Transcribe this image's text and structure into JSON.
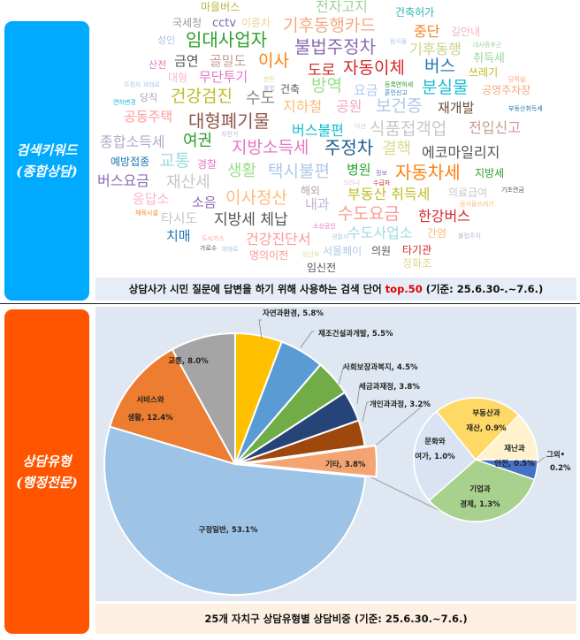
{
  "side_labels": {
    "top": {
      "line1": "검색키워드",
      "line2": "(종합상담)",
      "color": "#00aaff"
    },
    "bottom": {
      "line1": "상담유형",
      "line2": "(행정전문)",
      "color": "#ff5500"
    }
  },
  "wordcloud": {
    "words": [
      {
        "text": "마을버스",
        "color": "#b8b83c"
      },
      {
        "text": "전자고지",
        "color": "#9fd39a"
      },
      {
        "text": "건축허가",
        "color": "#2bb5b5"
      },
      {
        "text": "국세청",
        "color": "#9a9a9a"
      },
      {
        "text": "cctv",
        "color": "#7c65a8"
      },
      {
        "text": "이륜차",
        "color": "#e6d58e"
      },
      {
        "text": "기후동행카드",
        "color": "#f5a97f"
      },
      {
        "text": "중단",
        "color": "#f58220"
      },
      {
        "text": "길안내",
        "color": "#f4b6c2"
      },
      {
        "text": "성인",
        "color": "#a9c4e0"
      },
      {
        "text": "임대사업자",
        "color": "#2ca02c"
      },
      {
        "text": "불법주정차",
        "color": "#8c6bb1"
      },
      {
        "text": "음식물",
        "color": "#aec7e8"
      },
      {
        "text": "대사증후군",
        "color": "#98d69a"
      },
      {
        "text": "기후동행",
        "color": "#c7d38a"
      },
      {
        "text": "취득세",
        "color": "#98d69a"
      },
      {
        "text": "산전",
        "color": "#e377c2"
      },
      {
        "text": "금연",
        "color": "#555555"
      },
      {
        "text": "골밀도",
        "color": "#c49c94"
      },
      {
        "text": "이사",
        "color": "#ff7f0e"
      },
      {
        "text": "도로",
        "color": "#d62728"
      },
      {
        "text": "자동이체",
        "color": "#d62728"
      },
      {
        "text": "버스",
        "color": "#1f77b4"
      },
      {
        "text": "쓰레기",
        "color": "#bcbd22"
      },
      {
        "text": "당직실",
        "color": "#ff9f60"
      },
      {
        "text": "주정차 과태료",
        "color": "#aec7e8"
      },
      {
        "text": "대형",
        "color": "#f7b6d2"
      },
      {
        "text": "무단투기",
        "color": "#e377c2"
      },
      {
        "text": "한민",
        "color": "#dbdb8d"
      },
      {
        "text": "불법",
        "color": "#c5b0d5"
      },
      {
        "text": "건축",
        "color": "#555555"
      },
      {
        "text": "방역",
        "color": "#98df8a"
      },
      {
        "text": "요금",
        "color": "#aec7e8"
      },
      {
        "text": "등록면허세",
        "color": "#2ca02c"
      },
      {
        "text": "분실물",
        "color": "#17becf"
      },
      {
        "text": "공영주차장",
        "color": "#f5a97f"
      },
      {
        "text": "당직",
        "color": "#a5a3c8"
      },
      {
        "text": "면허변경",
        "color": "#17becf"
      },
      {
        "text": "건강검진",
        "color": "#bcbd22"
      },
      {
        "text": "수도",
        "color": "#8a8a8a"
      },
      {
        "text": "혼인신고",
        "color": "#1f77b4"
      },
      {
        "text": "부동산취득세",
        "color": "#1f77b4"
      },
      {
        "text": "공동주택",
        "color": "#ff9896"
      },
      {
        "text": "지하철",
        "color": "#ffbb78"
      },
      {
        "text": "공원",
        "color": "#f1a7c4"
      },
      {
        "text": "보건증",
        "color": "#aec7e8"
      },
      {
        "text": "재개발",
        "color": "#6b4f3a"
      },
      {
        "text": "대형폐기물",
        "color": "#8c564b"
      },
      {
        "text": "버스불편",
        "color": "#17becf"
      },
      {
        "text": "식품접객업",
        "color": "#c7c7c7"
      },
      {
        "text": "전입신고",
        "color": "#c49c94"
      },
      {
        "text": "다산",
        "color": "#c7c7c7"
      },
      {
        "text": "자전거",
        "color": "#c5b0d5"
      },
      {
        "text": "종합소득세",
        "color": "#b0a8c8"
      },
      {
        "text": "여권",
        "color": "#2ca02c"
      },
      {
        "text": "지방소득세",
        "color": "#e377c2"
      },
      {
        "text": "주정차",
        "color": "#1f5f8b"
      },
      {
        "text": "결핵",
        "color": "#dbdb8d"
      },
      {
        "text": "에코마일리지",
        "color": "#555555"
      },
      {
        "text": "예방접종",
        "color": "#1f77b4"
      },
      {
        "text": "교통",
        "color": "#9edae5"
      },
      {
        "text": "경찰",
        "color": "#e377c2"
      },
      {
        "text": "생활",
        "color": "#98df8a"
      },
      {
        "text": "택시불편",
        "color": "#aec7e8"
      },
      {
        "text": "병원",
        "color": "#2ca02c"
      },
      {
        "text": "정보",
        "color": "#8c6bb1"
      },
      {
        "text": "자동차세",
        "color": "#ff7f0e"
      },
      {
        "text": "지방세",
        "color": "#2ca02c"
      },
      {
        "text": "버스요금",
        "color": "#8c6bb1"
      },
      {
        "text": "재산세",
        "color": "#c7c7c7"
      },
      {
        "text": "크리나",
        "color": "#f7b6d2"
      },
      {
        "text": "수급자",
        "color": "#d62728"
      },
      {
        "text": "해외",
        "color": "#aaaaaa"
      },
      {
        "text": "의료급여",
        "color": "#c7c7c7"
      },
      {
        "text": "기초연금",
        "color": "#555555"
      },
      {
        "text": "응답소",
        "color": "#f7b6d2"
      },
      {
        "text": "이사정산",
        "color": "#ffbb78"
      },
      {
        "text": "부동산 취득세",
        "color": "#bcbd22"
      },
      {
        "text": "음식물쓰레기",
        "color": "#ffbb78"
      },
      {
        "text": "체육시설",
        "color": "#ff7f0e"
      },
      {
        "text": "소음",
        "color": "#8c6bb1"
      },
      {
        "text": "내과",
        "color": "#c5b0d5"
      },
      {
        "text": "수도요금",
        "color": "#ff9896"
      },
      {
        "text": "한강버스",
        "color": "#d62728"
      },
      {
        "text": "타시도",
        "color": "#c7c7c7"
      },
      {
        "text": "지방세 체납",
        "color": "#555555"
      },
      {
        "text": "소상공인",
        "color": "#e377c2"
      },
      {
        "text": "치매",
        "color": "#1f77b4"
      },
      {
        "text": "도시가스",
        "color": "#ff9896"
      },
      {
        "text": "가로수",
        "color": "#555555"
      },
      {
        "text": "과태료",
        "color": "#aec7e8"
      },
      {
        "text": "건강진단서",
        "color": "#ff9896"
      },
      {
        "text": "경찰서",
        "color": "#aec7e8"
      },
      {
        "text": "수도사업소",
        "color": "#9edae5"
      },
      {
        "text": "간염",
        "color": "#ffbb78"
      },
      {
        "text": "불법주차",
        "color": "#c5b0d5"
      },
      {
        "text": "명의이전",
        "color": "#ff9896"
      },
      {
        "text": "임산부",
        "color": "#dbdb8d"
      },
      {
        "text": "서울페이",
        "color": "#aec7e8"
      },
      {
        "text": "의원",
        "color": "#555555"
      },
      {
        "text": "타기관",
        "color": "#d62728"
      },
      {
        "text": "정화조",
        "color": "#dbdb8d"
      },
      {
        "text": "임신전",
        "color": "#555555"
      }
    ],
    "caption": {
      "before": "상담사가 시민 질문에 답변을 하기 위해 사용하는 검색 단어 ",
      "highlight": "top.50",
      "after": " (기준: 25.6.30-.~7.6.)",
      "highlight_color": "#e00000"
    }
  },
  "chart_data": {
    "type": "pie",
    "title": "",
    "caption": "25개 자치구 상담유형별 상담비중 (기준: 25.6.30.~7.6.)",
    "main": {
      "slices": [
        {
          "label": "자연과환경",
          "value": 5.8,
          "color": "#ffc000"
        },
        {
          "label": "제조건설과개발",
          "value": 5.5,
          "color": "#5b9bd5"
        },
        {
          "label": "사회보장과복지",
          "value": 4.5,
          "color": "#70ad47"
        },
        {
          "label": "세금과재정",
          "value": 3.8,
          "color": "#264478"
        },
        {
          "label": "개인과과정",
          "value": 3.2,
          "color": "#9e480e"
        },
        {
          "label": "기타",
          "value": 3.8,
          "color": "#f4a471",
          "exploded": true
        },
        {
          "label": "구정일반",
          "value": 53.1,
          "color": "#9dc3e6"
        },
        {
          "label": "서비스와 생활",
          "value": 12.4,
          "color": "#ed7d31"
        },
        {
          "label": "교통",
          "value": 8.0,
          "color": "#a5a5a5"
        }
      ]
    },
    "breakdown_of": "기타",
    "secondary": {
      "slices": [
        {
          "label": "부동산과 재산",
          "value": 0.9,
          "color": "#ffd966"
        },
        {
          "label": "재난과 안전",
          "value": 0.5,
          "color": "#fff2cc"
        },
        {
          "label": "그외•",
          "value": 0.2,
          "color": "#4472c4"
        },
        {
          "label": "기업과 경제",
          "value": 1.3,
          "color": "#a9d18e"
        },
        {
          "label": "문화와 여가",
          "value": 1.0,
          "color": "#dae3f3"
        }
      ]
    }
  }
}
